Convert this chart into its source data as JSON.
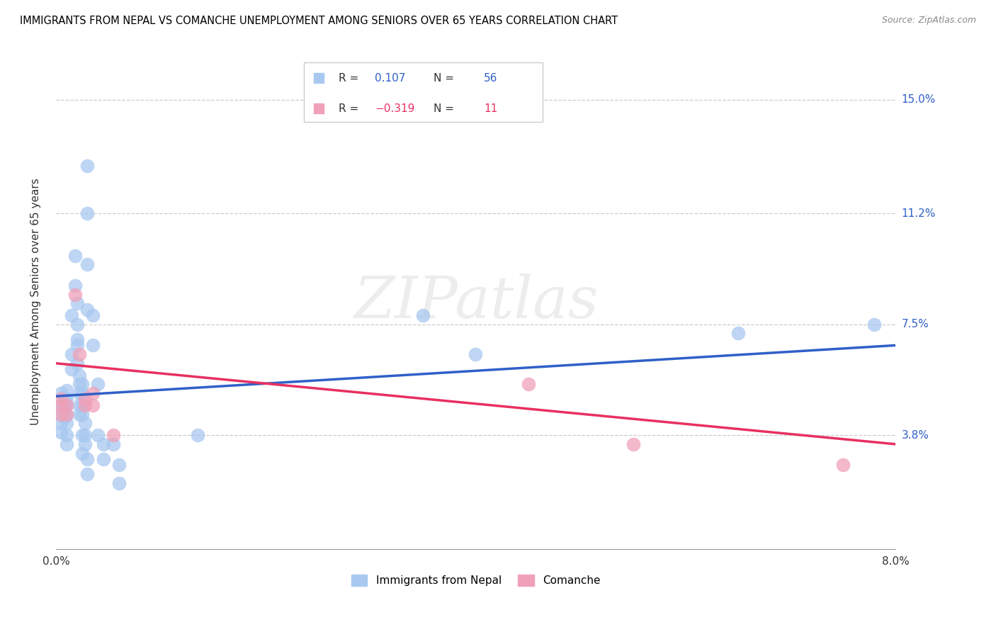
{
  "title": "IMMIGRANTS FROM NEPAL VS COMANCHE UNEMPLOYMENT AMONG SENIORS OVER 65 YEARS CORRELATION CHART",
  "source": "Source: ZipAtlas.com",
  "ylabel": "Unemployment Among Seniors over 65 years",
  "ylabel_ticks": [
    "3.8%",
    "7.5%",
    "11.2%",
    "15.0%"
  ],
  "ylabel_tick_vals": [
    3.8,
    7.5,
    11.2,
    15.0
  ],
  "xlim": [
    0.0,
    8.0
  ],
  "ylim": [
    0.0,
    16.5
  ],
  "nepal_color": "#a8c8f0",
  "comanche_color": "#f0a0b8",
  "nepal_line_color": "#3060c8",
  "comanche_line_color": "#e83060",
  "nepal_scatter": [
    [
      0.05,
      5.2
    ],
    [
      0.05,
      4.8
    ],
    [
      0.05,
      4.5
    ],
    [
      0.05,
      4.2
    ],
    [
      0.05,
      3.9
    ],
    [
      0.08,
      5.0
    ],
    [
      0.08,
      4.7
    ],
    [
      0.08,
      4.4
    ],
    [
      0.1,
      5.3
    ],
    [
      0.1,
      5.0
    ],
    [
      0.1,
      4.8
    ],
    [
      0.1,
      4.5
    ],
    [
      0.1,
      4.2
    ],
    [
      0.1,
      3.8
    ],
    [
      0.1,
      3.5
    ],
    [
      0.15,
      7.8
    ],
    [
      0.15,
      6.5
    ],
    [
      0.15,
      6.0
    ],
    [
      0.18,
      9.8
    ],
    [
      0.18,
      8.8
    ],
    [
      0.2,
      8.2
    ],
    [
      0.2,
      7.5
    ],
    [
      0.2,
      7.0
    ],
    [
      0.2,
      6.8
    ],
    [
      0.2,
      6.2
    ],
    [
      0.22,
      5.8
    ],
    [
      0.22,
      5.5
    ],
    [
      0.22,
      5.2
    ],
    [
      0.22,
      4.8
    ],
    [
      0.22,
      4.5
    ],
    [
      0.25,
      5.5
    ],
    [
      0.25,
      5.2
    ],
    [
      0.25,
      4.8
    ],
    [
      0.25,
      4.5
    ],
    [
      0.25,
      3.8
    ],
    [
      0.25,
      3.2
    ],
    [
      0.28,
      4.2
    ],
    [
      0.28,
      3.8
    ],
    [
      0.28,
      3.5
    ],
    [
      0.3,
      12.8
    ],
    [
      0.3,
      11.2
    ],
    [
      0.3,
      9.5
    ],
    [
      0.3,
      8.0
    ],
    [
      0.3,
      3.0
    ],
    [
      0.3,
      2.5
    ],
    [
      0.35,
      7.8
    ],
    [
      0.35,
      6.8
    ],
    [
      0.4,
      5.5
    ],
    [
      0.4,
      3.8
    ],
    [
      0.45,
      3.5
    ],
    [
      0.45,
      3.0
    ],
    [
      0.55,
      3.5
    ],
    [
      0.6,
      2.8
    ],
    [
      0.6,
      2.2
    ],
    [
      1.35,
      3.8
    ],
    [
      3.5,
      7.8
    ],
    [
      4.0,
      6.5
    ],
    [
      6.5,
      7.2
    ],
    [
      7.8,
      7.5
    ]
  ],
  "comanche_scatter": [
    [
      0.05,
      5.0
    ],
    [
      0.05,
      4.8
    ],
    [
      0.05,
      4.5
    ],
    [
      0.1,
      4.8
    ],
    [
      0.1,
      4.5
    ],
    [
      0.18,
      8.5
    ],
    [
      0.22,
      6.5
    ],
    [
      0.28,
      5.0
    ],
    [
      0.28,
      4.8
    ],
    [
      0.35,
      5.2
    ],
    [
      0.35,
      4.8
    ],
    [
      0.55,
      3.8
    ],
    [
      4.5,
      5.5
    ],
    [
      5.5,
      3.5
    ],
    [
      7.5,
      2.8
    ]
  ],
  "nepal_trendline": [
    [
      0.0,
      5.1
    ],
    [
      8.0,
      6.8
    ]
  ],
  "comanche_trendline": [
    [
      0.0,
      6.2
    ],
    [
      8.0,
      3.5
    ]
  ]
}
